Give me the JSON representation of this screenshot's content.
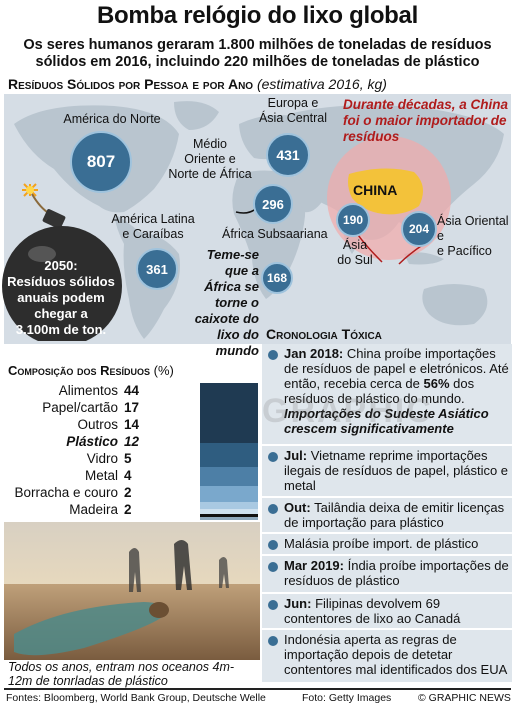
{
  "title": "Bomba relógio do lixo global",
  "subtitle_line1": "Os seres humanos geraram 1.800 milhões de toneladas de resíduos",
  "subtitle_line2": "sólidos em 2016, incluindo 220 milhões de toneladas de plástico",
  "map_section": {
    "title": "Resíduos Sólidos por Pessoa e por Ano",
    "note": "(estimativa 2016, kg)"
  },
  "regions": [
    {
      "name_l1": "América do Norte",
      "name_l2": "",
      "value": "807"
    },
    {
      "name_l1": "Europa e",
      "name_l2": "Ásia Central",
      "value": "431"
    },
    {
      "name_l1": "Médio",
      "name_l2": "Oriente e",
      "name_l3": "Norte de África",
      "value": "296"
    },
    {
      "name_l1": "América Latina",
      "name_l2": "e Caraíbas",
      "value": "361"
    },
    {
      "name_l1": "África Subsaariana",
      "name_l2": "",
      "value": "168"
    },
    {
      "name_l1": "Ásia",
      "name_l2": "do Sul",
      "value": "190"
    },
    {
      "name_l1": "Ásia Oriental e",
      "name_l2": "e Pacífico",
      "value": "204"
    }
  ],
  "china_note": "Durante décadas, a China foi o maior importador de resíduos",
  "china_label": "CHINA",
  "africa_note": "Teme-se que a África se torne o caixote do lixo do mundo",
  "bomb": {
    "year": "2050:",
    "text": "Resíduos sólidos anuais podem chegar a",
    "value": "3.100m de ton."
  },
  "composition": {
    "title": "Composição dos Resíduos",
    "unit": "(%)",
    "items": [
      {
        "label": "Alimentos",
        "value": "44",
        "color": "#1f3a52"
      },
      {
        "label": "Papel/cartão",
        "value": "17",
        "color": "#2f5d80"
      },
      {
        "label": "Outros",
        "value": "14",
        "color": "#4d7fa6"
      },
      {
        "label": "Plástico",
        "value": "12",
        "color": "#7aa8cc"
      },
      {
        "label": "Vidro",
        "value": "5",
        "color": "#a9c9e2"
      },
      {
        "label": "Metal",
        "value": "4",
        "color": "#cfe1ef"
      },
      {
        "label": "Borracha e couro",
        "value": "2",
        "color": "#111111"
      },
      {
        "label": "Madeira",
        "value": "2",
        "color": "#8fa9bd"
      }
    ]
  },
  "photo_caption": "Todos os anos, entram nos oceanos 4m-12m de tonrladas de plástico",
  "timeline": {
    "title": "Cronologia Tóxica",
    "items": [
      {
        "date": "Jan 2018:",
        "text": "China proíbe importações de resíduos de papel e eletrónicos. Até então, recebia cerca de ",
        "highlight": "56%",
        "text2": " dos resíduos de plástico do mundo.",
        "italic": "Importações do Sudeste Asiático crescem significativamente"
      },
      {
        "date": "Jul:",
        "text": "Vietname reprime importações ilegais de resíduos de papel, plástico e metal"
      },
      {
        "date": "Out:",
        "text": "Tailândia deixa de emitir licenças de importação para plástico"
      },
      {
        "date": "",
        "text": "Malásia proíbe import. de plástico"
      },
      {
        "date": "Mar 2019:",
        "text": "Índia proíbe importações de resíduos de plástico"
      },
      {
        "date": "Jun:",
        "text": "Filipinas devolvem 69 contentores de lixo ao Canadá"
      },
      {
        "date": "",
        "text": "Indonésia aperta as regras de importação depois de detetar contentores mal identificados dos EUA"
      }
    ]
  },
  "watermark": "GRAPHIC",
  "footer": {
    "sources": "Fontes: Bloomberg, World Bank Group, Deutsche Welle",
    "photo": "Foto: Getty Images",
    "credit": "© GRAPHIC NEWS"
  }
}
